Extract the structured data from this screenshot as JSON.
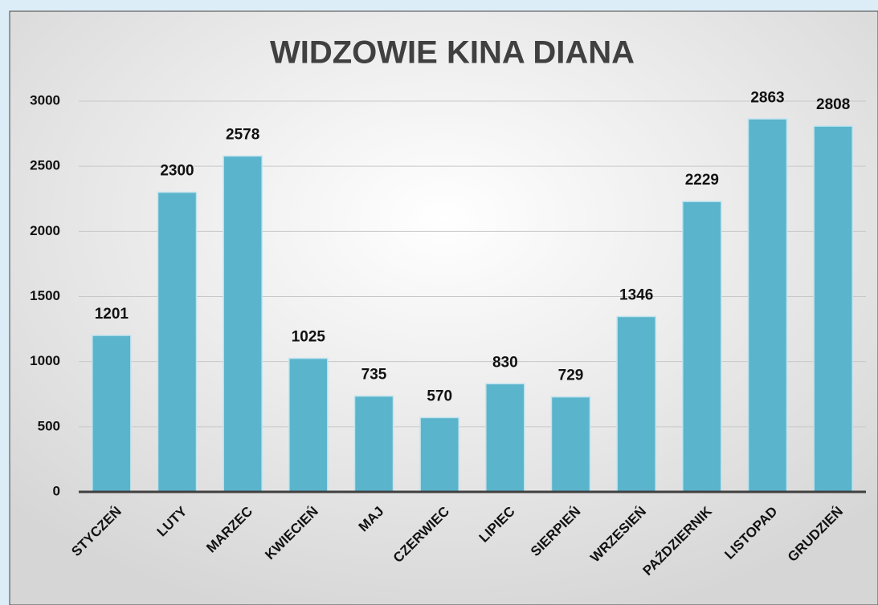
{
  "chart_data": {
    "type": "bar",
    "title": "WIDZOWIE KINA DIANA",
    "categories": [
      "STYCZEŃ",
      "LUTY",
      "MARZEC",
      "KWIECIEŃ",
      "MAJ",
      "CZERWIEC",
      "LIPIEC",
      "SIERPIEŃ",
      "WRZESIEŃ",
      "PAŹDZIERNIK",
      "LISTOPAD",
      "GRUDZIEŃ"
    ],
    "values": [
      1201,
      2300,
      2578,
      1025,
      735,
      570,
      830,
      729,
      1346,
      2229,
      2863,
      2808
    ],
    "color": "#5ab4cb",
    "ylim": [
      0,
      3000
    ],
    "yticks": [
      0,
      500,
      1000,
      1500,
      2000,
      2500,
      3000
    ],
    "grid": true
  }
}
